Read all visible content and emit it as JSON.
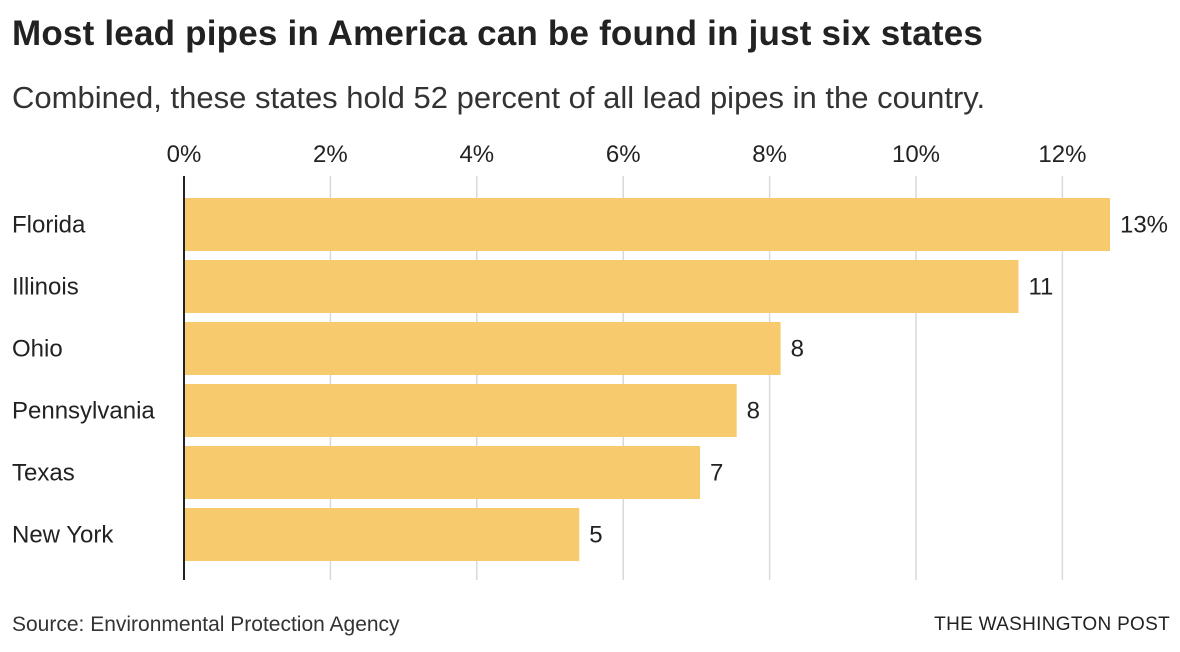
{
  "title": "Most lead pipes in America can be found in just six states",
  "subtitle": "Combined, these states hold 52 percent of all lead pipes in the country.",
  "source": "Source: Environmental Protection Agency",
  "credit": "THE WASHINGTON POST",
  "colors": {
    "bar": "#f7ca6e",
    "grid": "#d9d9d9",
    "axis": "#222222"
  },
  "chart_data": {
    "type": "bar",
    "orientation": "horizontal",
    "title": "Most lead pipes in America can be found in just six states",
    "subtitle": "Combined, these states hold 52 percent of all lead pipes in the country.",
    "categories": [
      "Florida",
      "Illinois",
      "Ohio",
      "Pennsylvania",
      "Texas",
      "New York"
    ],
    "values": [
      12.65,
      11.4,
      8.15,
      7.55,
      7.05,
      5.4
    ],
    "data_labels": [
      "13%",
      "11",
      "8",
      "8",
      "7",
      "5"
    ],
    "xlim": [
      0,
      13
    ],
    "ticks": [
      0,
      2,
      4,
      6,
      8,
      10,
      12
    ],
    "tick_labels": [
      "0%",
      "2%",
      "4%",
      "6%",
      "8%",
      "10%",
      "12%"
    ],
    "axis_position": "top",
    "grid": true,
    "legend": false
  }
}
